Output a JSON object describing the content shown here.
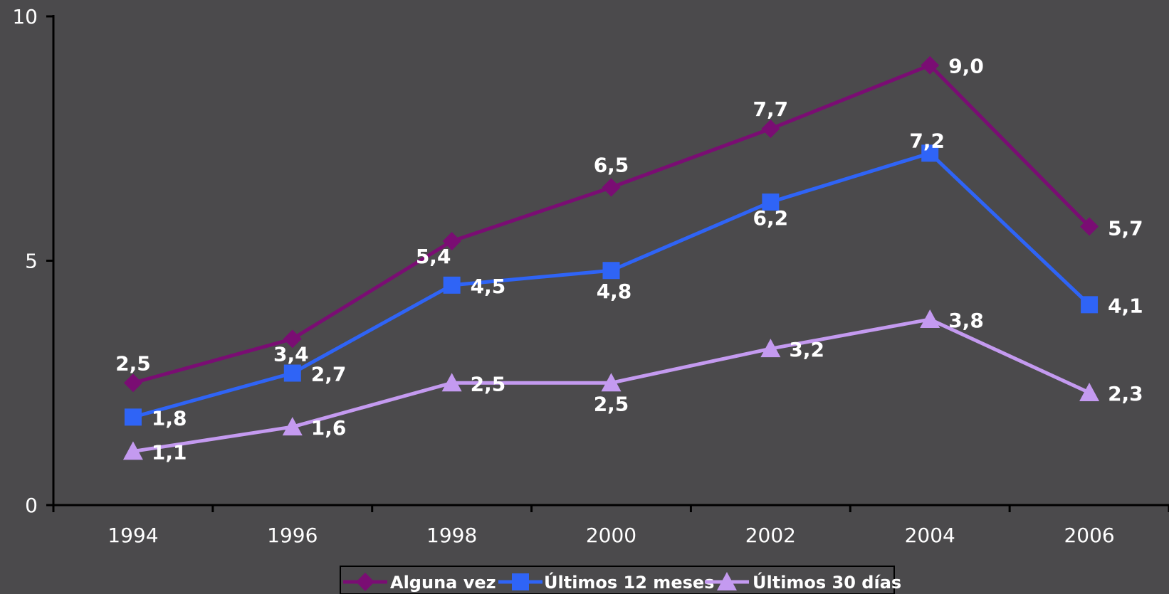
{
  "chart_data": {
    "type": "line",
    "title": "",
    "xlabel": "",
    "ylabel": "",
    "categories": [
      "1994",
      "1996",
      "1998",
      "2000",
      "2002",
      "2004",
      "2006"
    ],
    "ylim": [
      0,
      10
    ],
    "yticks": [
      0,
      5,
      10
    ],
    "ytick_labels": [
      "0",
      "5",
      "10"
    ],
    "grid": false,
    "legend_position": "bottom",
    "series": [
      {
        "name": "Alguna vez",
        "color": "#7a0d73",
        "marker": "diamond",
        "values": [
          2.5,
          3.4,
          5.4,
          6.5,
          7.7,
          9.0,
          5.7
        ],
        "labels": [
          "2,5",
          "3,4",
          "5,4",
          "6,5",
          "7,7",
          "9,0",
          "5,7"
        ]
      },
      {
        "name": "Últimos 12 meses",
        "color": "#2f64f6",
        "marker": "square",
        "values": [
          1.8,
          2.7,
          4.5,
          4.8,
          6.2,
          7.2,
          4.1
        ],
        "labels": [
          "1,8",
          "2,7",
          "4,5",
          "4,8",
          "6,2",
          "7,2",
          "4,1"
        ]
      },
      {
        "name": "Últimos 30 días",
        "color": "#c49af0",
        "marker": "triangle",
        "values": [
          1.1,
          1.6,
          2.5,
          2.5,
          3.2,
          3.8,
          2.3
        ],
        "labels": [
          "1,1",
          "1,6",
          "2,5",
          "2,5",
          "3,2",
          "3,8",
          "2,3"
        ]
      }
    ]
  }
}
